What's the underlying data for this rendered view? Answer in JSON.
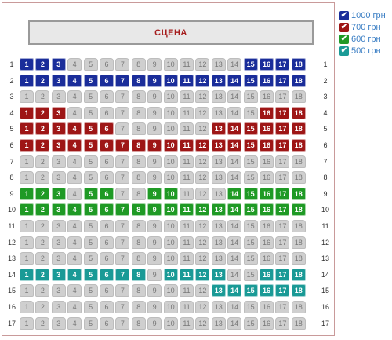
{
  "stage": {
    "label": "СЦЕНА"
  },
  "legend": [
    {
      "label": "1000 грн",
      "color": "#1a2d9a",
      "text_color": "#3a7ec4",
      "checked": true,
      "icon": "check-icon"
    },
    {
      "label": "700 грн",
      "color": "#9e1616",
      "text_color": "#3a7ec4",
      "checked": true,
      "icon": "check-icon"
    },
    {
      "label": "600 грн",
      "color": "#1f9a25",
      "text_color": "#3a7ec4",
      "checked": true,
      "icon": "check-icon"
    },
    {
      "label": "500 грн",
      "color": "#1a9a96",
      "text_color": "#3a7ec4",
      "checked": true,
      "icon": "check-icon"
    }
  ],
  "hall": {
    "seats_per_row": 18,
    "rows": [
      {
        "row": "1",
        "available": [
          1,
          2,
          3,
          15,
          16,
          17,
          18
        ],
        "price": "1000"
      },
      {
        "row": "2",
        "available": [
          1,
          2,
          3,
          4,
          5,
          6,
          7,
          8,
          9,
          10,
          11,
          12,
          13,
          14,
          15,
          16,
          17,
          18
        ],
        "price": "1000"
      },
      {
        "row": "3",
        "available": [],
        "price": ""
      },
      {
        "row": "4",
        "available": [
          1,
          2,
          3,
          16,
          17,
          18
        ],
        "price": "700"
      },
      {
        "row": "5",
        "available": [
          1,
          2,
          3,
          4,
          5,
          6,
          13,
          14,
          15,
          16,
          17,
          18
        ],
        "price": "700"
      },
      {
        "row": "6",
        "available": [
          1,
          2,
          3,
          4,
          5,
          6,
          7,
          8,
          9,
          10,
          11,
          12,
          13,
          14,
          15,
          16,
          17,
          18
        ],
        "price": "700"
      },
      {
        "row": "7",
        "available": [],
        "price": ""
      },
      {
        "row": "8",
        "available": [],
        "price": ""
      },
      {
        "row": "9",
        "available": [
          1,
          2,
          3,
          5,
          6,
          9,
          10,
          14,
          15,
          16,
          17,
          18
        ],
        "price": "600"
      },
      {
        "row": "10",
        "available": [
          1,
          2,
          3,
          4,
          5,
          6,
          7,
          8,
          9,
          10,
          11,
          12,
          13,
          14,
          15,
          16,
          17,
          18
        ],
        "price": "600"
      },
      {
        "row": "11",
        "available": [],
        "price": ""
      },
      {
        "row": "12",
        "available": [],
        "price": ""
      },
      {
        "row": "13",
        "available": [],
        "price": ""
      },
      {
        "row": "14",
        "available": [
          1,
          2,
          3,
          4,
          5,
          6,
          7,
          8,
          10,
          11,
          12,
          13,
          16,
          17,
          18
        ],
        "price": "500"
      },
      {
        "row": "15",
        "available": [
          13,
          14,
          15,
          16,
          17,
          18
        ],
        "price": "500"
      },
      {
        "row": "16",
        "available": [],
        "price": ""
      },
      {
        "row": "17",
        "available": [],
        "price": ""
      }
    ]
  }
}
